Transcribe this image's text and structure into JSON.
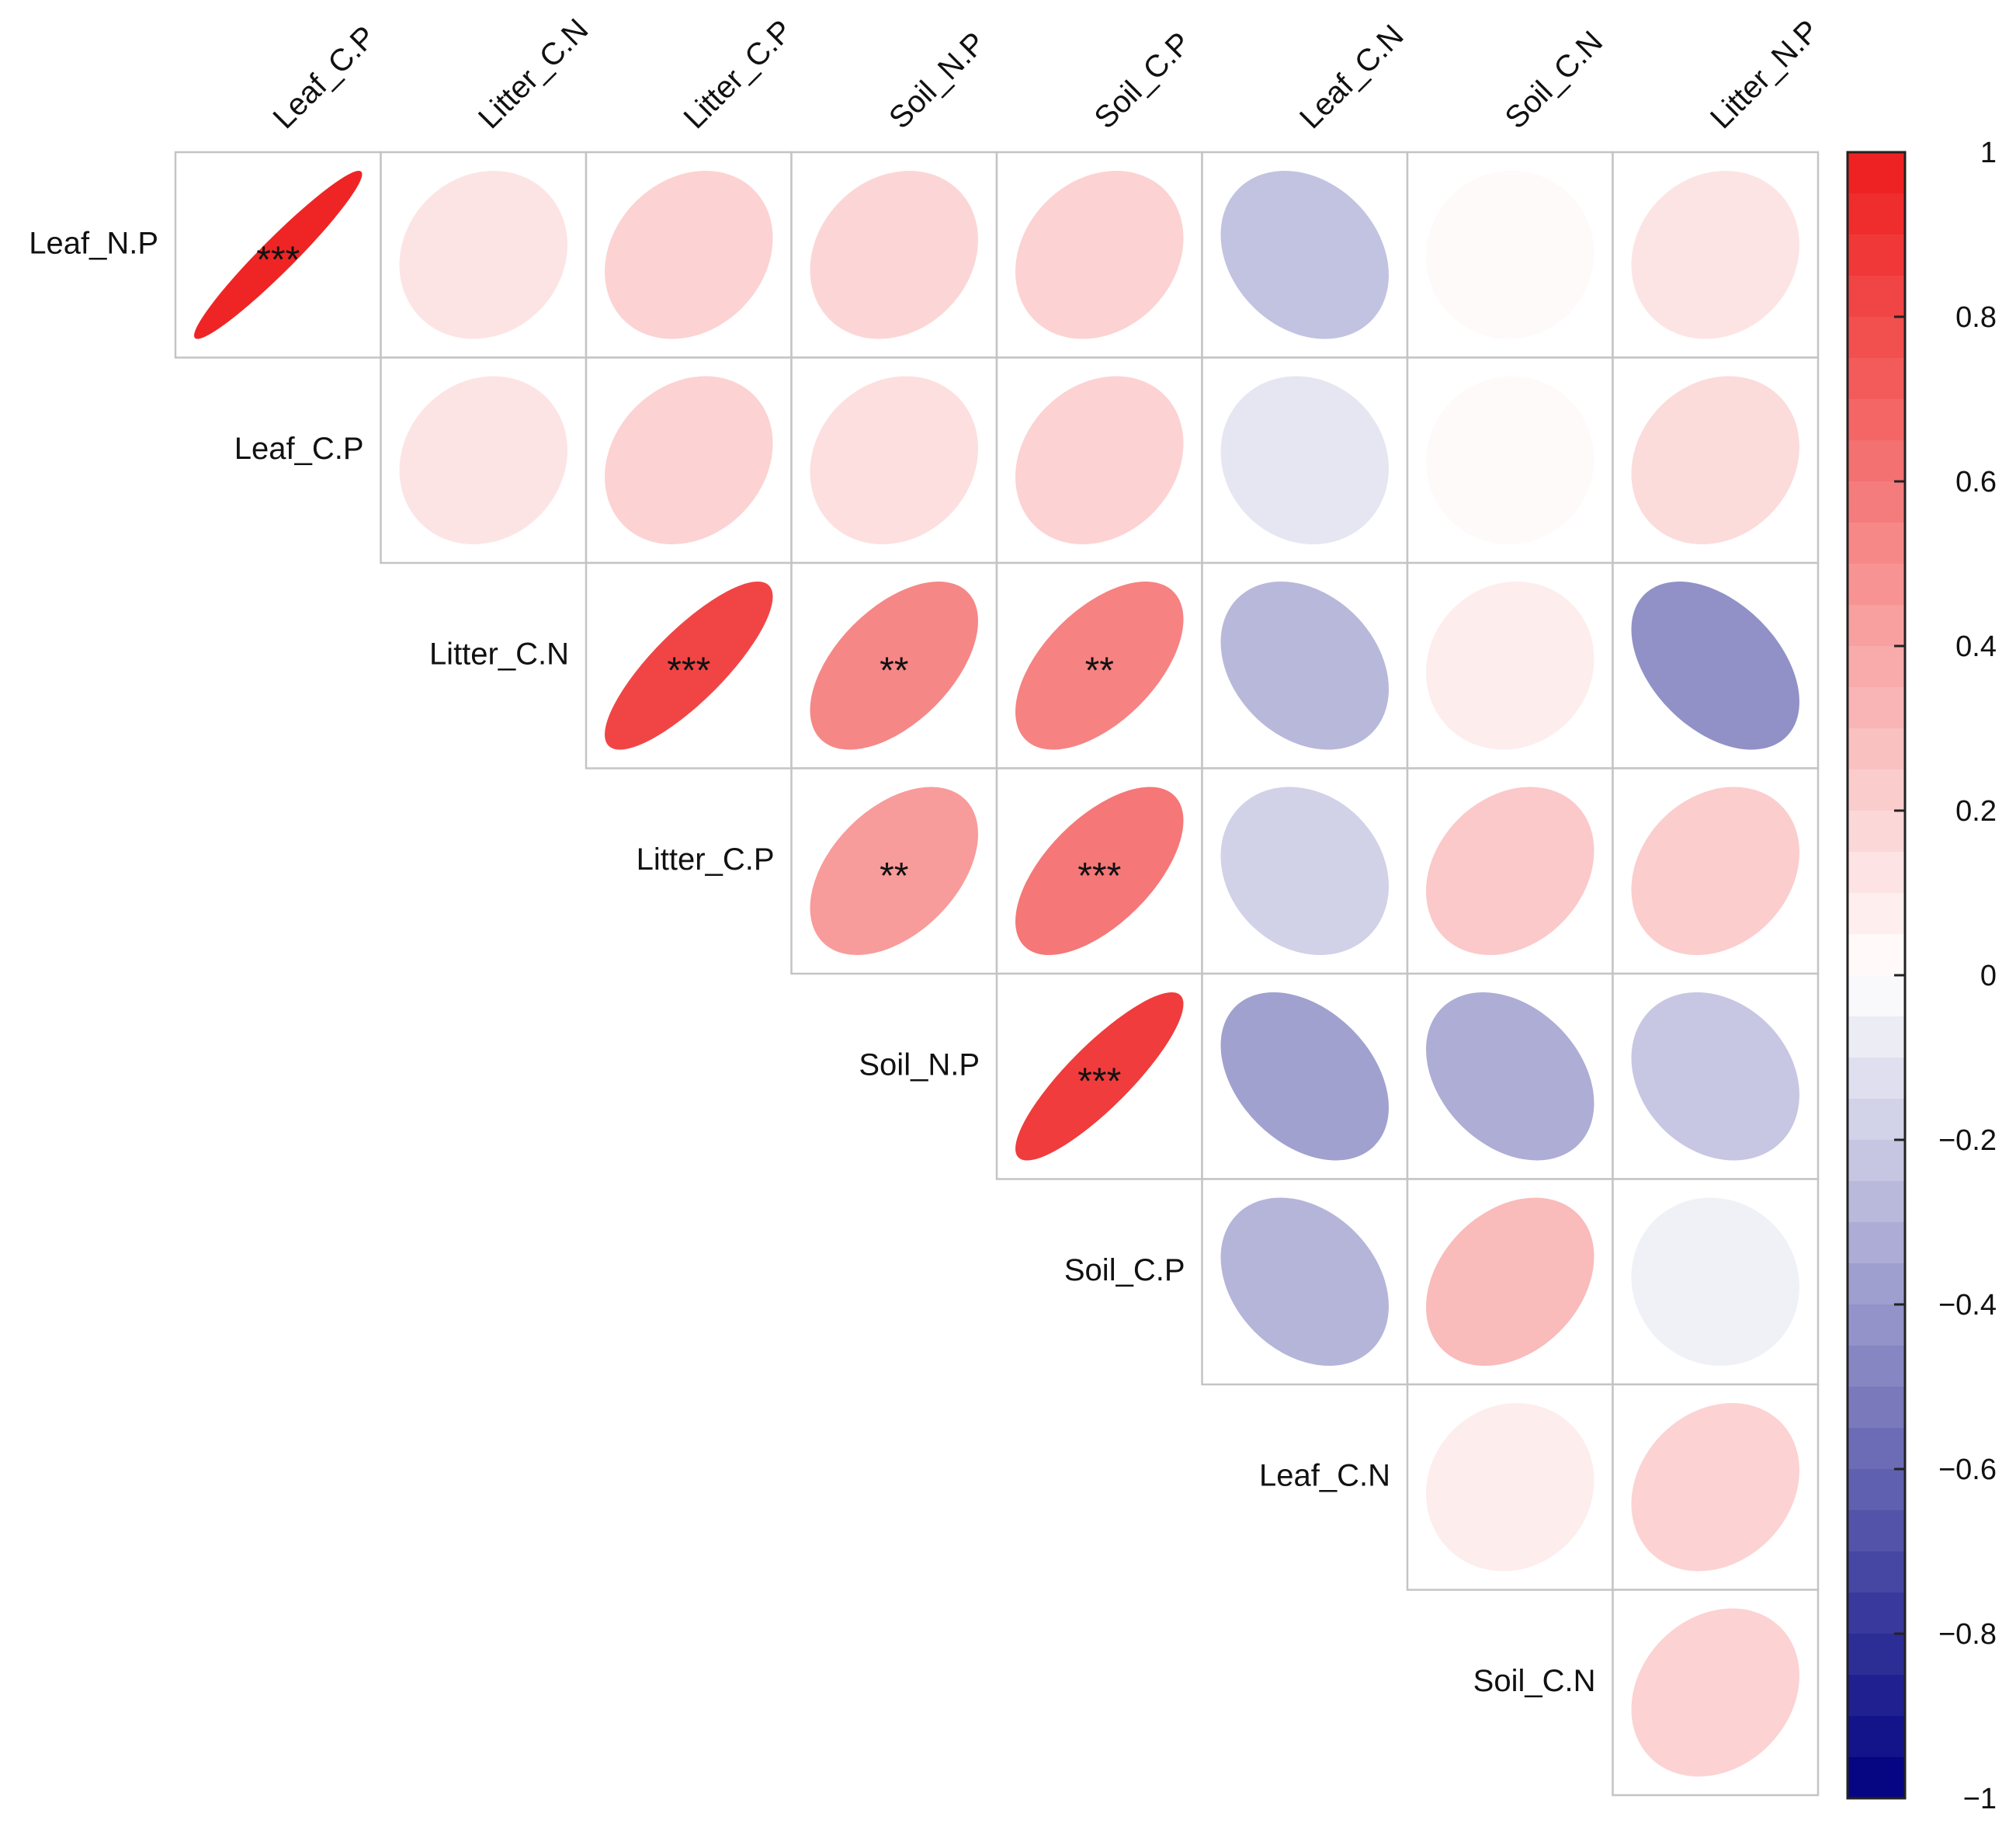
{
  "chart_data": {
    "type": "heatmap",
    "subtype": "correlation-ellipse-upper-triangle",
    "row_labels": [
      "Leaf_N.P",
      "Leaf_C.P",
      "Litter_C.N",
      "Litter_C.P",
      "Soil_N.P",
      "Soil_C.P",
      "Leaf_C.N",
      "Soil_C.N"
    ],
    "column_labels": [
      "Leaf_C.P",
      "Litter_C.N",
      "Litter_C.P",
      "Soil_N.P",
      "Soil_C.P",
      "Leaf_C.N",
      "Soil_C.N",
      "Litter_N.P"
    ],
    "matrix": [
      [
        0.96,
        0.12,
        0.2,
        0.18,
        0.2,
        -0.24,
        0.02,
        0.12
      ],
      [
        null,
        0.12,
        0.2,
        0.14,
        0.2,
        -0.1,
        0.02,
        0.16
      ],
      [
        null,
        null,
        0.82,
        0.53,
        0.55,
        -0.28,
        0.08,
        -0.43
      ],
      [
        null,
        null,
        null,
        0.44,
        0.6,
        -0.18,
        0.24,
        0.22
      ],
      [
        null,
        null,
        null,
        null,
        0.86,
        -0.37,
        -0.32,
        -0.22
      ],
      [
        null,
        null,
        null,
        null,
        null,
        -0.29,
        0.3,
        -0.06
      ],
      [
        null,
        null,
        null,
        null,
        null,
        null,
        0.08,
        0.2
      ],
      [
        null,
        null,
        null,
        null,
        null,
        null,
        null,
        0.2
      ]
    ],
    "significance": [
      [
        "***",
        "",
        "",
        "",
        "",
        "",
        "",
        ""
      ],
      [
        "",
        "",
        "",
        "",
        "",
        "",
        "",
        ""
      ],
      [
        "",
        "",
        "***",
        "**",
        "**",
        "",
        "",
        ""
      ],
      [
        "",
        "",
        "",
        "**",
        "***",
        "",
        "",
        ""
      ],
      [
        "",
        "",
        "",
        "",
        "***",
        "",
        "",
        ""
      ],
      [
        "",
        "",
        "",
        "",
        "",
        "",
        "",
        ""
      ],
      [
        "",
        "",
        "",
        "",
        "",
        "",
        "",
        ""
      ],
      [
        "",
        "",
        "",
        "",
        "",
        "",
        "",
        ""
      ]
    ],
    "colorbar": {
      "range": [
        -1,
        1
      ],
      "ticks": [
        "1",
        "0.8",
        "0.6",
        "0.4",
        "0.2",
        "0",
        "−0.2",
        "−0.4",
        "−0.6",
        "−0.8",
        "−1"
      ],
      "colors": {
        "negative": "#000080",
        "zero": "#ffffff",
        "positive": "#ee1c1c"
      }
    },
    "title": "",
    "legend_position": "right",
    "grid": true
  }
}
